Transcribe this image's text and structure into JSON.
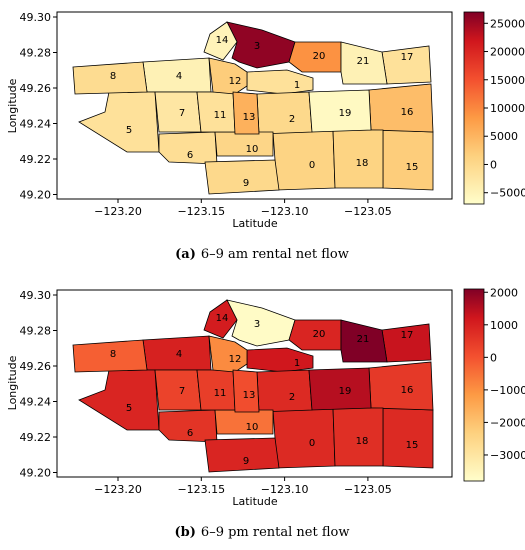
{
  "chart_data": [
    {
      "type": "heatmap",
      "caption_letter": "(a)",
      "caption_text": "6–9 am rental net flow",
      "xlabel": "Latitude",
      "ylabel": "Longitude",
      "xticks": [
        "−123.20",
        "−123.15",
        "−123.10",
        "−123.05"
      ],
      "yticks": [
        "49.30",
        "49.28",
        "49.26",
        "49.24",
        "49.22",
        "49.20"
      ],
      "colorbar_ticks": [
        "25000",
        "20000",
        "15000",
        "10000",
        "5000",
        "0",
        "−5000"
      ],
      "colorbar_range": [
        -7000,
        27000
      ],
      "region_values": [
        {
          "id": "0",
          "value": 900
        },
        {
          "id": "1",
          "value": -1500
        },
        {
          "id": "2",
          "value": 0
        },
        {
          "id": "3",
          "value": 26000
        },
        {
          "id": "4",
          "value": -4500
        },
        {
          "id": "5",
          "value": -1500
        },
        {
          "id": "6",
          "value": -1000
        },
        {
          "id": "7",
          "value": -2500
        },
        {
          "id": "8",
          "value": -500
        },
        {
          "id": "9",
          "value": 0
        },
        {
          "id": "10",
          "value": 500
        },
        {
          "id": "11",
          "value": -1500
        },
        {
          "id": "12",
          "value": 2000
        },
        {
          "id": "13",
          "value": 5500
        },
        {
          "id": "14",
          "value": -5000
        },
        {
          "id": "15",
          "value": 2000
        },
        {
          "id": "16",
          "value": 4000
        },
        {
          "id": "17",
          "value": -1500
        },
        {
          "id": "18",
          "value": 1000
        },
        {
          "id": "19",
          "value": -6000
        },
        {
          "id": "20",
          "value": 9000
        },
        {
          "id": "21",
          "value": -4500
        }
      ]
    },
    {
      "type": "heatmap",
      "caption_letter": "(b)",
      "caption_text": "6–9 pm rental net flow",
      "xlabel": "Latitude",
      "ylabel": "Longitude",
      "xticks": [
        "−123.20",
        "−123.15",
        "−123.10",
        "−123.05"
      ],
      "yticks": [
        "49.30",
        "49.28",
        "49.26",
        "49.24",
        "49.22",
        "49.20"
      ],
      "colorbar_ticks": [
        "2000",
        "1000",
        "0",
        "−1000",
        "−2000",
        "−3000"
      ],
      "colorbar_range": [
        -3800,
        2100
      ],
      "region_values": [
        {
          "id": "0",
          "value": 800
        },
        {
          "id": "1",
          "value": 1200
        },
        {
          "id": "2",
          "value": 800
        },
        {
          "id": "3",
          "value": -3700
        },
        {
          "id": "4",
          "value": 1000
        },
        {
          "id": "5",
          "value": 900
        },
        {
          "id": "6",
          "value": 600
        },
        {
          "id": "7",
          "value": 300
        },
        {
          "id": "8",
          "value": -200
        },
        {
          "id": "9",
          "value": 900
        },
        {
          "id": "10",
          "value": -500
        },
        {
          "id": "11",
          "value": 400
        },
        {
          "id": "12",
          "value": -900
        },
        {
          "id": "13",
          "value": 100
        },
        {
          "id": "14",
          "value": 1100
        },
        {
          "id": "15",
          "value": 800
        },
        {
          "id": "16",
          "value": 500
        },
        {
          "id": "17",
          "value": 1300
        },
        {
          "id": "18",
          "value": 700
        },
        {
          "id": "19",
          "value": 1500
        },
        {
          "id": "20",
          "value": 900
        },
        {
          "id": "21",
          "value": 2100
        }
      ]
    }
  ]
}
